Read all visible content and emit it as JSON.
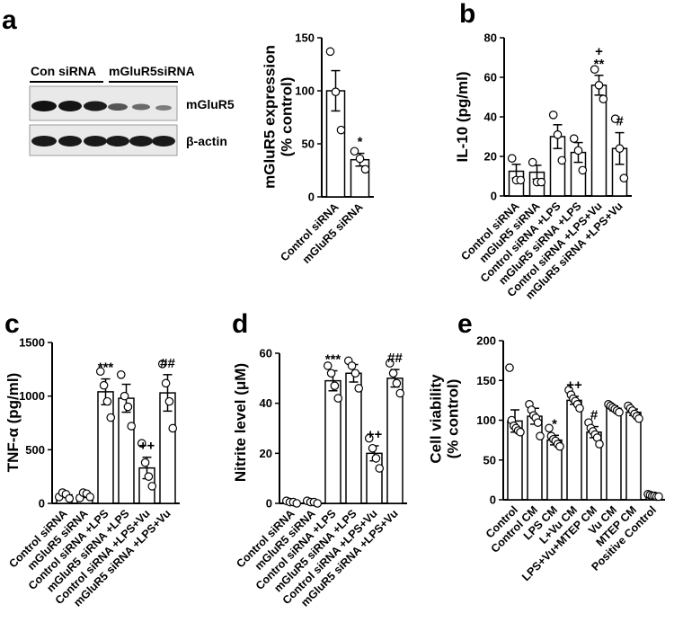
{
  "panel_letters": {
    "a": "a",
    "b": "b",
    "c": "c",
    "d": "d",
    "e": "e"
  },
  "blot": {
    "group_labels": [
      "Con siRNA",
      "mGluR5siRNA"
    ],
    "row_labels": [
      "mGluR5",
      "β-actin"
    ]
  },
  "chart_data": [
    {
      "type": "bar",
      "title": "",
      "ylabel": [
        "mGluR5 expression",
        "(% control)"
      ],
      "ylim": [
        0,
        150
      ],
      "yticks": [
        0,
        50,
        100,
        150
      ],
      "categories": [
        "Control siRNA",
        "mGluR5 siRNA"
      ],
      "values": [
        100,
        35
      ],
      "errors": [
        19,
        6
      ],
      "points": [
        [
          137,
          99,
          63
        ],
        [
          43,
          36,
          26
        ]
      ],
      "annotations": [
        "",
        "*"
      ]
    },
    {
      "type": "bar",
      "title": "",
      "ylabel": [
        "IL-10 (pg/ml)"
      ],
      "ylim": [
        0,
        80
      ],
      "yticks": [
        0,
        20,
        40,
        60,
        80
      ],
      "categories": [
        "Control siRNA",
        "mGluR5 siRNA",
        "Control siRNA +LPS",
        "mGluR5 siRNA +LPS",
        "Control siRNA +LPS+Vu",
        "mGluR5 siRNA +LPS+Vu"
      ],
      "values": [
        12.5,
        12,
        30,
        22,
        56,
        24
      ],
      "errors": [
        3.5,
        3.5,
        6,
        5,
        5,
        8
      ],
      "points": [
        [
          19,
          8,
          8
        ],
        [
          17,
          7,
          7
        ],
        [
          41,
          31,
          18
        ],
        [
          29,
          23,
          13
        ],
        [
          64,
          56,
          49
        ],
        [
          39,
          24,
          9
        ]
      ],
      "annotations": [
        "",
        "",
        "",
        "",
        "+\n**",
        "#"
      ]
    },
    {
      "type": "bar",
      "title": "",
      "ylabel": [
        "TNF-α (pg/ml)"
      ],
      "ylim": [
        0,
        1500
      ],
      "yticks": [
        0,
        500,
        1000,
        1500
      ],
      "categories": [
        "Control siRNA",
        "mGluR5 siRNA",
        "Control siRNA +LPS",
        "mGluR5 siRNA +LPS",
        "Control siRNA +LPS+Vu",
        "mGluR5 siRNA +LPS+Vu"
      ],
      "values": [
        80,
        75,
        1040,
        980,
        330,
        1030
      ],
      "errors": [
        20,
        20,
        120,
        130,
        100,
        170
      ],
      "points": [
        [
          60,
          100,
          85,
          45
        ],
        [
          50,
          100,
          90,
          60
        ],
        [
          1230,
          1100,
          950,
          800
        ],
        [
          1200,
          1000,
          900,
          720
        ],
        [
          560,
          380,
          250,
          160
        ],
        [
          1300,
          1120,
          950,
          700
        ]
      ],
      "annotations": [
        "",
        "",
        "***",
        "",
        "++",
        "##"
      ]
    },
    {
      "type": "bar",
      "title": "",
      "ylabel": [
        "Nitrite level (μM)"
      ],
      "ylim": [
        0,
        60
      ],
      "yticks": [
        0,
        20,
        40,
        60
      ],
      "categories": [
        "Control siRNA",
        "mGluR5 siRNA",
        "Control siRNA +LPS",
        "mGluR5 siRNA +LPS",
        "Control siRNA +LPS+Vu",
        "mGluR5 siRNA +LPS+Vu"
      ],
      "values": [
        0.5,
        0.5,
        49,
        52,
        20,
        50
      ],
      "errors": [
        0.5,
        0.5,
        4,
        3.5,
        3,
        3.5
      ],
      "points": [
        [
          1,
          0.5,
          0.5,
          0
        ],
        [
          1,
          0.5,
          0.5,
          0
        ],
        [
          55,
          52,
          47,
          42
        ],
        [
          57,
          55,
          52,
          46
        ],
        [
          26,
          22,
          18,
          14
        ],
        [
          56,
          52,
          48,
          44
        ]
      ],
      "annotations": [
        "",
        "",
        "***",
        "",
        "++",
        "##"
      ]
    },
    {
      "type": "bar",
      "title": "",
      "ylabel": [
        "Cell viability",
        "(% control)"
      ],
      "ylim": [
        0,
        200
      ],
      "yticks": [
        0,
        50,
        100,
        150,
        200
      ],
      "categories": [
        "Control",
        "Control CM",
        "LPS CM",
        "L+Vu CM",
        "LPS+Vu+MTEP CM",
        "Vu CM",
        "MTEP CM",
        "Positive Control"
      ],
      "values": [
        99,
        105,
        75,
        125,
        85,
        115,
        110,
        5
      ],
      "errors": [
        14,
        10,
        6,
        5,
        7,
        3,
        4,
        1
      ],
      "points": [
        [
          166,
          100,
          93,
          90,
          87,
          85
        ],
        [
          120,
          113,
          106,
          103,
          97,
          80
        ],
        [
          90,
          80,
          76,
          74,
          70,
          67
        ],
        [
          138,
          132,
          127,
          124,
          120,
          115
        ],
        [
          97,
          90,
          86,
          82,
          78,
          70
        ],
        [
          120,
          118,
          116,
          114,
          112,
          110
        ],
        [
          118,
          115,
          112,
          108,
          105,
          102
        ],
        [
          7,
          6,
          5,
          5,
          4,
          4
        ]
      ],
      "annotations": [
        "",
        "",
        "*",
        "++",
        "#",
        "",
        "",
        ""
      ]
    }
  ]
}
